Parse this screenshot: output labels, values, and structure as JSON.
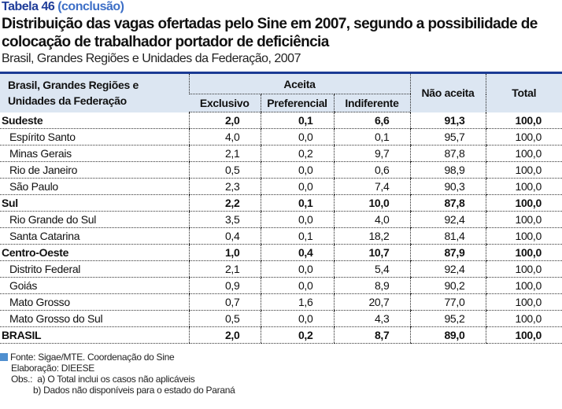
{
  "table_number": "Tabela 46",
  "table_status": "(conclusão)",
  "title": "Distribuição das vagas ofertadas pelo Sine em 2007, segundo a possibilidade de colocação de trabalhador portador de deficiência",
  "subtitle": "Brasil, Grandes Regiões e Unidades da Federação, 2007",
  "headers": {
    "region": "Brasil, Grandes Regiões e Unidades da Federação",
    "aceita": "Aceita",
    "exclusivo": "Exclusivo",
    "preferencial": "Preferencial",
    "indiferente": "Indiferente",
    "nao_aceita": "Não aceita",
    "total": "Total"
  },
  "rows": [
    {
      "name": "Sudeste",
      "bold": true,
      "v": [
        "2,0",
        "0,1",
        "6,6",
        "91,3",
        "100,0"
      ]
    },
    {
      "name": "Espírito Santo",
      "bold": false,
      "v": [
        "4,0",
        "0,0",
        "0,1",
        "95,7",
        "100,0"
      ]
    },
    {
      "name": "Minas Gerais",
      "bold": false,
      "v": [
        "2,1",
        "0,2",
        "9,7",
        "87,8",
        "100,0"
      ]
    },
    {
      "name": "Rio de Janeiro",
      "bold": false,
      "v": [
        "0,5",
        "0,0",
        "0,6",
        "98,9",
        "100,0"
      ]
    },
    {
      "name": "São Paulo",
      "bold": false,
      "v": [
        "2,3",
        "0,0",
        "7,4",
        "90,3",
        "100,0"
      ]
    },
    {
      "name": "Sul",
      "bold": true,
      "v": [
        "2,2",
        "0,1",
        "10,0",
        "87,8",
        "100,0"
      ]
    },
    {
      "name": "Rio Grande do Sul",
      "bold": false,
      "v": [
        "3,5",
        "0,0",
        "4,0",
        "92,4",
        "100,0"
      ]
    },
    {
      "name": "Santa Catarina",
      "bold": false,
      "v": [
        "0,4",
        "0,1",
        "18,2",
        "81,4",
        "100,0"
      ]
    },
    {
      "name": "Centro-Oeste",
      "bold": true,
      "v": [
        "1,0",
        "0,4",
        "10,7",
        "87,9",
        "100,0"
      ]
    },
    {
      "name": "Distrito Federal",
      "bold": false,
      "v": [
        "2,1",
        "0,0",
        "5,4",
        "92,4",
        "100,0"
      ]
    },
    {
      "name": "Goiás",
      "bold": false,
      "v": [
        "0,9",
        "0,0",
        "8,9",
        "90,2",
        "100,0"
      ]
    },
    {
      "name": "Mato Grosso",
      "bold": false,
      "v": [
        "0,7",
        "1,6",
        "20,7",
        "77,0",
        "100,0"
      ]
    },
    {
      "name": "Mato Grosso do Sul",
      "bold": false,
      "v": [
        "0,5",
        "0,0",
        "4,3",
        "95,2",
        "100,0"
      ]
    },
    {
      "name": "BRASIL",
      "bold": true,
      "v": [
        "2,0",
        "0,2",
        "8,7",
        "89,0",
        "100,0"
      ]
    }
  ],
  "notes": {
    "source": "Fonte: Sigae/MTE. Coordenação do Sine",
    "elaboration": "Elaboração: DIEESE",
    "obs_a": "Obs.:  a) O Total inclui os casos não aplicáveis",
    "obs_b": "b) Dados não disponíveis para o estado do Paraná"
  },
  "colors": {
    "accent": "#1f3d99",
    "header_bg": "#dce6f2",
    "note_square": "#4f8fcf"
  }
}
